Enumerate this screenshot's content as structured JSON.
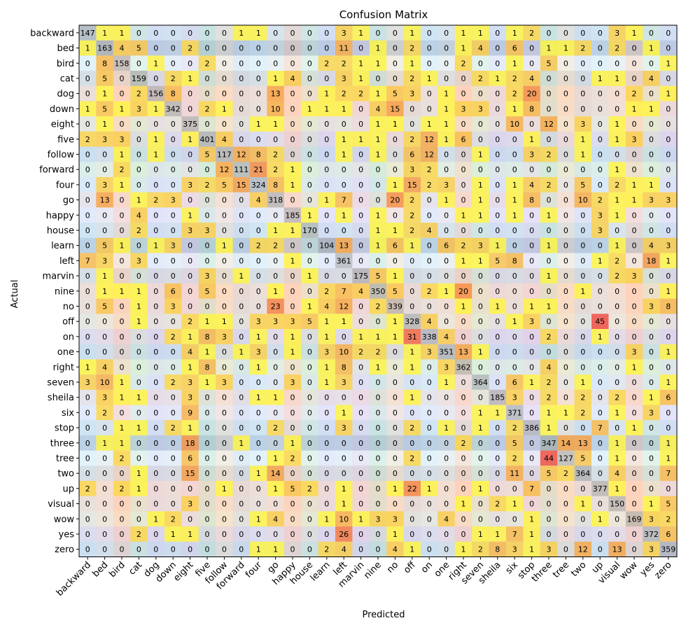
{
  "chart_data": {
    "type": "heatmap",
    "title": "Confusion Matrix",
    "xlabel": "Predicted",
    "ylabel": "Actual",
    "labels": [
      "backward",
      "bed",
      "bird",
      "cat",
      "dog",
      "down",
      "eight",
      "five",
      "follow",
      "forward",
      "four",
      "go",
      "happy",
      "house",
      "learn",
      "left",
      "marvin",
      "nine",
      "no",
      "off",
      "on",
      "one",
      "right",
      "seven",
      "sheila",
      "six",
      "stop",
      "three",
      "tree",
      "two",
      "up",
      "visual",
      "wow",
      "yes",
      "zero"
    ],
    "matrix": [
      [
        147,
        1,
        1,
        0,
        0,
        0,
        0,
        0,
        0,
        1,
        1,
        0,
        0,
        0,
        0,
        3,
        1,
        0,
        0,
        1,
        0,
        0,
        1,
        1,
        0,
        1,
        2,
        0,
        0,
        0,
        0,
        3,
        1,
        0,
        0
      ],
      [
        1,
        163,
        4,
        5,
        0,
        0,
        2,
        0,
        0,
        0,
        0,
        0,
        0,
        0,
        0,
        11,
        0,
        1,
        0,
        2,
        0,
        0,
        1,
        4,
        0,
        6,
        0,
        1,
        1,
        2,
        0,
        2,
        0,
        1,
        0
      ],
      [
        0,
        8,
        158,
        0,
        1,
        0,
        0,
        2,
        0,
        0,
        0,
        0,
        0,
        0,
        2,
        2,
        1,
        1,
        0,
        1,
        0,
        0,
        2,
        0,
        0,
        1,
        0,
        5,
        0,
        0,
        0,
        0,
        0,
        0,
        1
      ],
      [
        0,
        5,
        0,
        159,
        0,
        2,
        1,
        0,
        0,
        0,
        0,
        1,
        4,
        0,
        0,
        3,
        1,
        0,
        0,
        2,
        1,
        0,
        0,
        2,
        1,
        2,
        4,
        0,
        0,
        0,
        1,
        1,
        0,
        4,
        0
      ],
      [
        0,
        1,
        0,
        2,
        156,
        8,
        0,
        0,
        0,
        0,
        0,
        13,
        0,
        0,
        1,
        2,
        2,
        1,
        5,
        3,
        0,
        1,
        0,
        0,
        0,
        2,
        20,
        0,
        0,
        0,
        0,
        0,
        2,
        0,
        1
      ],
      [
        1,
        5,
        1,
        3,
        1,
        342,
        0,
        2,
        1,
        0,
        0,
        10,
        0,
        1,
        1,
        1,
        0,
        4,
        15,
        0,
        0,
        1,
        3,
        3,
        0,
        1,
        8,
        0,
        0,
        0,
        0,
        0,
        1,
        1,
        0
      ],
      [
        0,
        1,
        0,
        0,
        0,
        0,
        375,
        0,
        0,
        0,
        1,
        1,
        0,
        0,
        0,
        0,
        0,
        1,
        1,
        0,
        1,
        1,
        0,
        0,
        0,
        10,
        0,
        12,
        0,
        3,
        0,
        1,
        0,
        0,
        0
      ],
      [
        2,
        3,
        3,
        0,
        1,
        0,
        1,
        401,
        4,
        0,
        0,
        0,
        0,
        0,
        0,
        1,
        1,
        1,
        0,
        2,
        12,
        1,
        6,
        0,
        0,
        0,
        1,
        0,
        0,
        1,
        0,
        1,
        3,
        0,
        0
      ],
      [
        0,
        0,
        1,
        0,
        1,
        0,
        0,
        5,
        117,
        12,
        8,
        2,
        0,
        0,
        0,
        1,
        0,
        1,
        0,
        6,
        12,
        0,
        0,
        1,
        0,
        0,
        3,
        2,
        0,
        1,
        0,
        0,
        0,
        0,
        0
      ],
      [
        0,
        0,
        2,
        0,
        0,
        0,
        0,
        0,
        12,
        111,
        21,
        2,
        1,
        0,
        0,
        0,
        0,
        0,
        0,
        3,
        2,
        0,
        0,
        0,
        0,
        0,
        0,
        0,
        0,
        0,
        0,
        1,
        0,
        0,
        0
      ],
      [
        0,
        3,
        1,
        0,
        0,
        0,
        3,
        2,
        5,
        15,
        324,
        8,
        1,
        0,
        0,
        0,
        0,
        0,
        1,
        15,
        2,
        3,
        0,
        1,
        0,
        1,
        4,
        2,
        0,
        5,
        0,
        2,
        1,
        1,
        0
      ],
      [
        0,
        13,
        0,
        1,
        2,
        3,
        0,
        0,
        0,
        0,
        4,
        318,
        0,
        0,
        1,
        7,
        0,
        0,
        20,
        2,
        0,
        1,
        0,
        1,
        0,
        1,
        8,
        0,
        0,
        10,
        2,
        1,
        1,
        3,
        3
      ],
      [
        0,
        0,
        0,
        4,
        0,
        0,
        1,
        0,
        0,
        0,
        0,
        0,
        185,
        1,
        0,
        1,
        0,
        1,
        0,
        2,
        0,
        0,
        1,
        1,
        0,
        1,
        0,
        1,
        0,
        0,
        3,
        1,
        0,
        0,
        0
      ],
      [
        0,
        0,
        0,
        2,
        0,
        0,
        3,
        3,
        0,
        0,
        0,
        1,
        1,
        170,
        0,
        0,
        0,
        1,
        1,
        2,
        4,
        0,
        0,
        0,
        0,
        0,
        0,
        0,
        0,
        0,
        3,
        0,
        0,
        0,
        0
      ],
      [
        0,
        5,
        1,
        0,
        1,
        3,
        0,
        0,
        1,
        0,
        2,
        2,
        0,
        0,
        104,
        13,
        0,
        1,
        6,
        1,
        0,
        6,
        2,
        3,
        1,
        0,
        0,
        1,
        0,
        0,
        0,
        1,
        0,
        4,
        3
      ],
      [
        7,
        3,
        0,
        3,
        0,
        0,
        0,
        0,
        0,
        0,
        0,
        0,
        1,
        0,
        0,
        361,
        0,
        0,
        0,
        0,
        0,
        0,
        1,
        1,
        5,
        8,
        0,
        0,
        0,
        0,
        1,
        2,
        0,
        18,
        1
      ],
      [
        0,
        1,
        0,
        0,
        0,
        0,
        0,
        3,
        0,
        1,
        0,
        0,
        0,
        1,
        0,
        0,
        175,
        5,
        1,
        0,
        0,
        0,
        0,
        0,
        0,
        0,
        0,
        1,
        0,
        0,
        0,
        2,
        3,
        0,
        0
      ],
      [
        0,
        1,
        1,
        1,
        0,
        6,
        0,
        5,
        0,
        0,
        0,
        1,
        0,
        0,
        2,
        7,
        4,
        350,
        5,
        0,
        2,
        1,
        20,
        0,
        0,
        0,
        0,
        0,
        0,
        1,
        0,
        0,
        0,
        0,
        1
      ],
      [
        0,
        5,
        0,
        1,
        0,
        3,
        0,
        0,
        0,
        0,
        0,
        23,
        0,
        1,
        4,
        12,
        0,
        2,
        339,
        0,
        0,
        0,
        1,
        0,
        1,
        0,
        1,
        1,
        0,
        0,
        0,
        0,
        0,
        3,
        8
      ],
      [
        0,
        0,
        0,
        1,
        0,
        0,
        2,
        1,
        1,
        0,
        3,
        3,
        3,
        5,
        1,
        1,
        0,
        0,
        1,
        328,
        4,
        0,
        0,
        0,
        0,
        1,
        3,
        0,
        0,
        0,
        45,
        0,
        0,
        0,
        0
      ],
      [
        0,
        0,
        0,
        0,
        0,
        2,
        1,
        8,
        3,
        0,
        1,
        0,
        1,
        0,
        1,
        0,
        1,
        1,
        1,
        31,
        338,
        4,
        0,
        0,
        0,
        0,
        0,
        2,
        0,
        0,
        1,
        0,
        0,
        0,
        0
      ],
      [
        0,
        0,
        0,
        0,
        0,
        0,
        4,
        1,
        0,
        1,
        3,
        0,
        1,
        0,
        3,
        10,
        2,
        2,
        0,
        1,
        3,
        351,
        13,
        1,
        0,
        0,
        0,
        0,
        0,
        0,
        0,
        0,
        3,
        0,
        1
      ],
      [
        1,
        4,
        0,
        0,
        0,
        0,
        1,
        8,
        0,
        0,
        1,
        0,
        0,
        0,
        1,
        8,
        0,
        1,
        0,
        1,
        0,
        3,
        362,
        0,
        0,
        0,
        0,
        4,
        0,
        0,
        0,
        0,
        1,
        0,
        0
      ],
      [
        3,
        10,
        1,
        0,
        0,
        2,
        3,
        1,
        3,
        0,
        0,
        0,
        3,
        0,
        1,
        3,
        0,
        0,
        0,
        0,
        0,
        1,
        0,
        364,
        0,
        6,
        1,
        2,
        0,
        1,
        0,
        0,
        0,
        0,
        1
      ],
      [
        0,
        3,
        1,
        1,
        0,
        0,
        3,
        0,
        0,
        0,
        1,
        1,
        0,
        0,
        0,
        0,
        0,
        0,
        0,
        1,
        0,
        0,
        0,
        0,
        185,
        3,
        0,
        2,
        0,
        2,
        0,
        2,
        0,
        1,
        6
      ],
      [
        0,
        2,
        0,
        0,
        0,
        0,
        9,
        0,
        0,
        0,
        0,
        0,
        0,
        0,
        0,
        1,
        0,
        0,
        0,
        0,
        0,
        0,
        0,
        1,
        1,
        371,
        0,
        1,
        1,
        2,
        0,
        1,
        0,
        3,
        0
      ],
      [
        0,
        0,
        1,
        1,
        0,
        2,
        1,
        0,
        0,
        0,
        0,
        2,
        0,
        0,
        0,
        3,
        0,
        0,
        0,
        2,
        0,
        1,
        0,
        1,
        0,
        2,
        386,
        1,
        0,
        0,
        7,
        0,
        1,
        0,
        0
      ],
      [
        0,
        1,
        1,
        0,
        0,
        0,
        18,
        0,
        0,
        1,
        0,
        0,
        1,
        0,
        0,
        0,
        0,
        0,
        0,
        0,
        0,
        0,
        2,
        0,
        0,
        5,
        0,
        347,
        14,
        13,
        0,
        1,
        0,
        0,
        1
      ],
      [
        0,
        0,
        2,
        0,
        0,
        0,
        6,
        0,
        0,
        0,
        0,
        1,
        2,
        0,
        0,
        0,
        0,
        0,
        0,
        2,
        0,
        0,
        0,
        0,
        0,
        2,
        0,
        44,
        127,
        5,
        0,
        1,
        0,
        0,
        1
      ],
      [
        0,
        0,
        0,
        1,
        0,
        0,
        15,
        0,
        0,
        0,
        1,
        14,
        0,
        0,
        0,
        0,
        0,
        0,
        0,
        0,
        0,
        0,
        0,
        0,
        0,
        11,
        0,
        5,
        2,
        364,
        0,
        4,
        0,
        0,
        7
      ],
      [
        2,
        0,
        2,
        1,
        0,
        0,
        0,
        0,
        1,
        0,
        0,
        1,
        5,
        2,
        0,
        1,
        0,
        0,
        1,
        22,
        1,
        0,
        0,
        1,
        0,
        0,
        7,
        0,
        0,
        0,
        377,
        1,
        0,
        0,
        0
      ],
      [
        0,
        0,
        0,
        0,
        0,
        0,
        3,
        0,
        0,
        0,
        0,
        0,
        0,
        0,
        0,
        1,
        0,
        0,
        0,
        0,
        0,
        0,
        1,
        0,
        2,
        1,
        0,
        0,
        0,
        1,
        0,
        150,
        0,
        1,
        5
      ],
      [
        0,
        0,
        0,
        0,
        1,
        2,
        0,
        0,
        0,
        0,
        1,
        4,
        0,
        0,
        1,
        10,
        1,
        3,
        3,
        0,
        0,
        4,
        0,
        0,
        0,
        0,
        1,
        0,
        0,
        0,
        1,
        0,
        169,
        3,
        2
      ],
      [
        0,
        0,
        0,
        2,
        0,
        1,
        1,
        0,
        0,
        0,
        0,
        0,
        0,
        0,
        0,
        26,
        0,
        0,
        1,
        0,
        0,
        0,
        0,
        1,
        1,
        7,
        1,
        0,
        0,
        0,
        0,
        0,
        0,
        372,
        6
      ],
      [
        0,
        0,
        0,
        0,
        0,
        0,
        0,
        0,
        0,
        0,
        1,
        1,
        0,
        0,
        2,
        4,
        0,
        0,
        4,
        1,
        0,
        0,
        1,
        2,
        8,
        3,
        1,
        3,
        0,
        12,
        0,
        13,
        0,
        3,
        359
      ]
    ]
  }
}
